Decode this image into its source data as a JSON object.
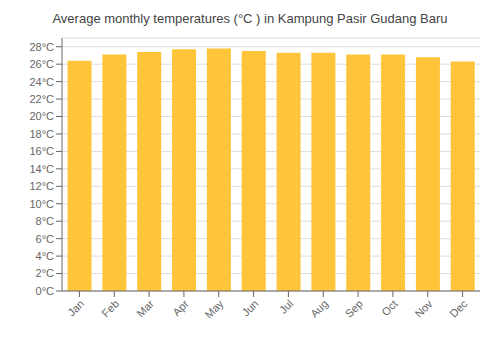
{
  "chart_data": {
    "type": "bar",
    "title": "Average monthly temperatures (°C ) in Kampung Pasir Gudang Baru",
    "categories": [
      "Jan",
      "Feb",
      "Mar",
      "Apr",
      "May",
      "Jun",
      "Jul",
      "Aug",
      "Sep",
      "Oct",
      "Nov",
      "Dec"
    ],
    "values": [
      26.4,
      27.1,
      27.4,
      27.7,
      27.8,
      27.5,
      27.3,
      27.3,
      27.1,
      27.1,
      26.8,
      26.3
    ],
    "color": "#FFC53A",
    "ylim": [
      0,
      29
    ],
    "yticks": [
      {
        "value": 0,
        "label": "0°C"
      },
      {
        "value": 2,
        "label": "2°C"
      },
      {
        "value": 4,
        "label": "4°C"
      },
      {
        "value": 6,
        "label": "6°C"
      },
      {
        "value": 8,
        "label": "8°C"
      },
      {
        "value": 10,
        "label": "10°C"
      },
      {
        "value": 12,
        "label": "12°C"
      },
      {
        "value": 14,
        "label": "14°C"
      },
      {
        "value": 16,
        "label": "16°C"
      },
      {
        "value": 18,
        "label": "18°C"
      },
      {
        "value": 20,
        "label": "20°C"
      },
      {
        "value": 22,
        "label": "22°C"
      },
      {
        "value": 24,
        "label": "24°C"
      },
      {
        "value": 26,
        "label": "26°C"
      },
      {
        "value": 28,
        "label": "28°C"
      }
    ],
    "grid": true
  }
}
